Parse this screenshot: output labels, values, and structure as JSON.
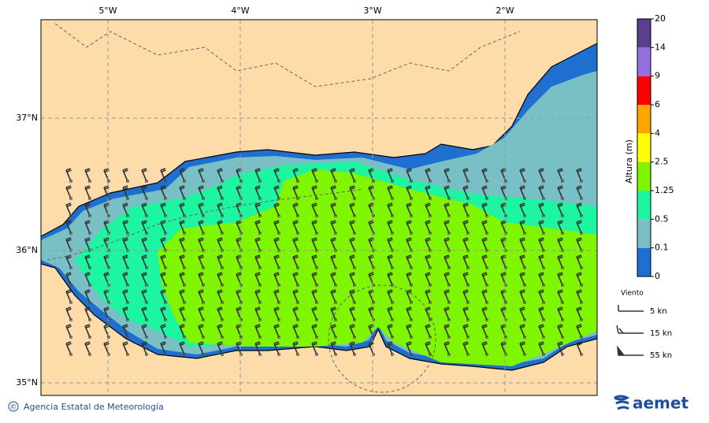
{
  "map": {
    "lon_labels": [
      "5°W",
      "4°W",
      "3°W",
      "2°W"
    ],
    "lat_labels": [
      "37°N",
      "36°N",
      "35°N"
    ]
  },
  "colorbar": {
    "title": "Altura (m)",
    "levels": [
      0,
      0.1,
      0.5,
      1.25,
      2.5,
      4,
      6,
      9,
      14,
      20
    ],
    "colors": [
      "#1f6fd1",
      "#79c0c6",
      "#1ef5a0",
      "#7ff500",
      "#ffff00",
      "#ffa500",
      "#ff0000",
      "#9370db",
      "#5b3f8f"
    ]
  },
  "wind_legend": {
    "title": "Viento",
    "items": [
      "5 kn",
      "15 kn",
      "55 kn"
    ]
  },
  "footer": {
    "symbol": "©",
    "agency": "Agencia Estatal de Meteorología",
    "logo": "aemet"
  }
}
